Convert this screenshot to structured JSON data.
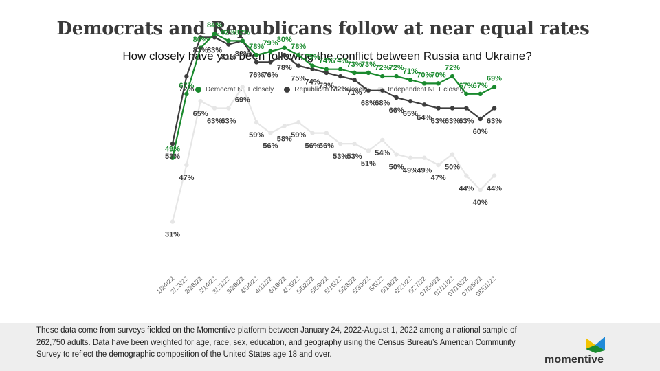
{
  "header": {
    "title": "Democrats and Republicans follow at near equal rates",
    "subtitle": "How closely have you been following the conflict between Russia and Ukraine?"
  },
  "chart_data": {
    "type": "line",
    "categories": [
      "1/24/22",
      "2/23/22",
      "2/28/22",
      "3/14/22",
      "3/21/22",
      "3/28/22",
      "4/04/22",
      "4/11/22",
      "4/18/22",
      "4/25/22",
      "5/02/22",
      "5/09/22",
      "5/16/22",
      "5/23/22",
      "5/30/22",
      "6/6/22",
      "6/13/22",
      "6/21/22",
      "6/27/22",
      "07/04/22",
      "07/11/22",
      "07/18/22",
      "07/25/22",
      "08/01/22"
    ],
    "ylim": [
      30,
      85
    ],
    "legend_position": "top",
    "grid": false,
    "series": [
      {
        "name": "Democrat NET closely",
        "color": "#1a8a2e",
        "values": [
          49,
          67,
          80,
          84,
          82,
          82,
          78,
          79,
          80,
          78,
          75,
          74,
          74,
          73,
          73,
          72,
          72,
          71,
          70,
          70,
          72,
          67,
          67,
          69
        ]
      },
      {
        "name": "Republican NET closely",
        "color": "#3d3d3d",
        "values": [
          53,
          72,
          83,
          83,
          81,
          82,
          76,
          76,
          78,
          75,
          74,
          73,
          72,
          71,
          68,
          68,
          66,
          65,
          64,
          63,
          63,
          63,
          60,
          63
        ]
      },
      {
        "name": "Independent NET closely",
        "color": "#e6e6e6",
        "values": [
          31,
          47,
          65,
          63,
          63,
          69,
          59,
          56,
          58,
          59,
          56,
          56,
          53,
          53,
          51,
          54,
          50,
          49,
          49,
          47,
          50,
          44,
          40,
          44
        ]
      }
    ],
    "label_colors": [
      "#1a8a2e",
      "#3d3d3d",
      "#3d3d3d"
    ]
  },
  "footer": {
    "note": "These data come from surveys fielded on the Momentive platform between January 24, 2022-August 1, 2022 among a national sample of 262,750 adults. Data have been weighted for age, race, sex, education, and geography using the Census Bureau’s American Community Survey to reflect the demographic composition of the United States age 18 and over.",
    "brand": "momentive",
    "brand_colors": [
      "#f2c300",
      "#1f8ad8",
      "#1a8a2e"
    ]
  }
}
